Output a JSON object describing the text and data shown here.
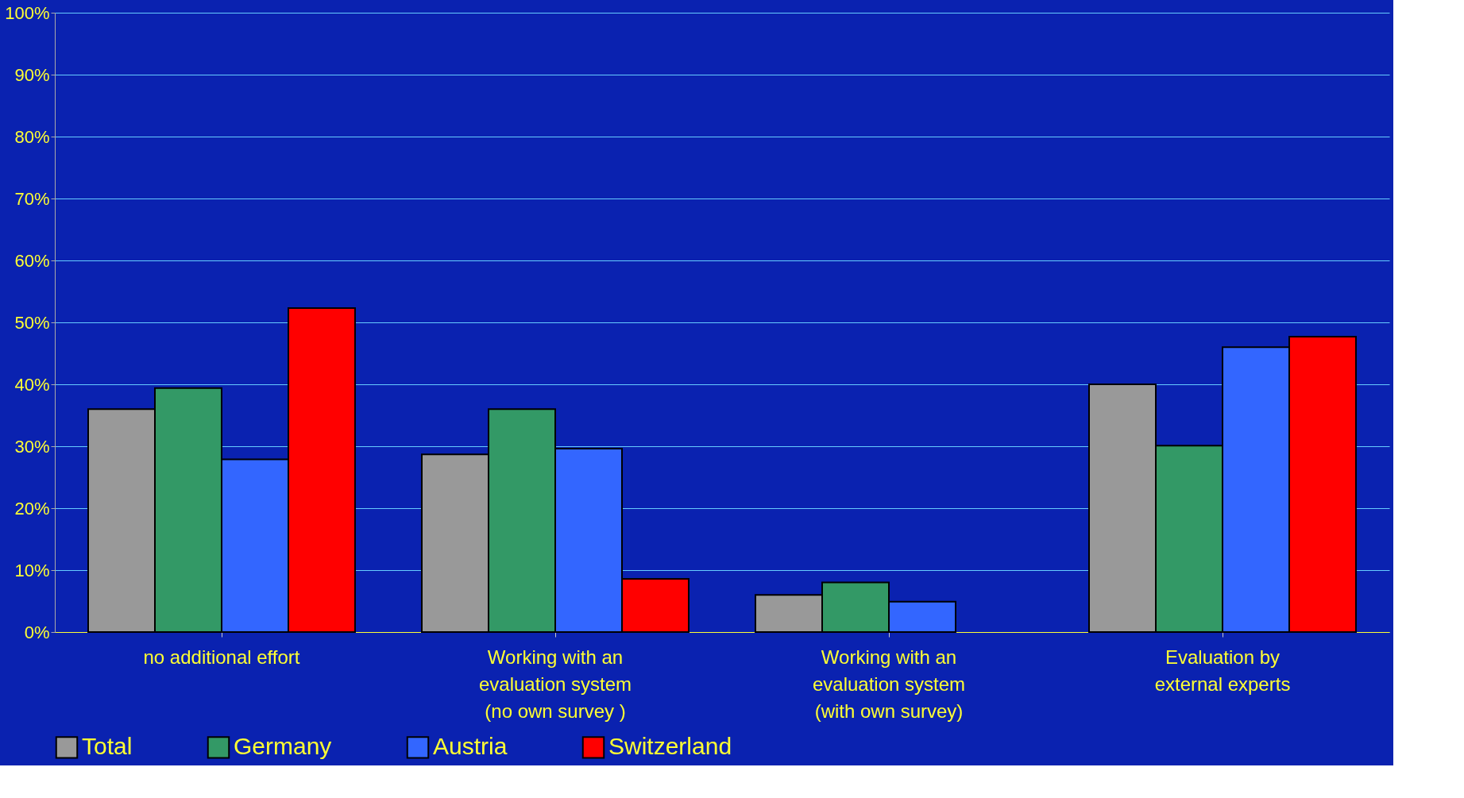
{
  "chart_data": {
    "type": "bar",
    "categories": [
      "no additional effort",
      "Working with an\nevaluation system\n(no own survey )",
      "Working with an\nevaluation system\n(with own survey)",
      "Evaluation by\nexternal experts"
    ],
    "series": [
      {
        "name": "Total",
        "color": "#999999",
        "values": [
          36,
          28.7,
          6,
          40
        ]
      },
      {
        "name": "Germany",
        "color": "#339966",
        "values": [
          39.4,
          36,
          8,
          30.1
        ]
      },
      {
        "name": "Austria",
        "color": "#3366ff",
        "values": [
          27.9,
          29.6,
          4.9,
          46
        ]
      },
      {
        "name": "Switzerland",
        "color": "#ff0000",
        "values": [
          52.3,
          8.6,
          null,
          47.7
        ]
      }
    ],
    "ylim": [
      0,
      100
    ],
    "yticks": [
      {
        "value": 0,
        "label": "0%"
      },
      {
        "value": 10,
        "label": "10%"
      },
      {
        "value": 20,
        "label": "20%"
      },
      {
        "value": 30,
        "label": "30%"
      },
      {
        "value": 40,
        "label": "40%"
      },
      {
        "value": 50,
        "label": "50%"
      },
      {
        "value": 60,
        "label": "60%"
      },
      {
        "value": 70,
        "label": "70%"
      },
      {
        "value": 80,
        "label": "80%"
      },
      {
        "value": 90,
        "label": "90%"
      },
      {
        "value": 100,
        "label": "100%"
      }
    ],
    "grid": "y",
    "legend": "bottom"
  }
}
